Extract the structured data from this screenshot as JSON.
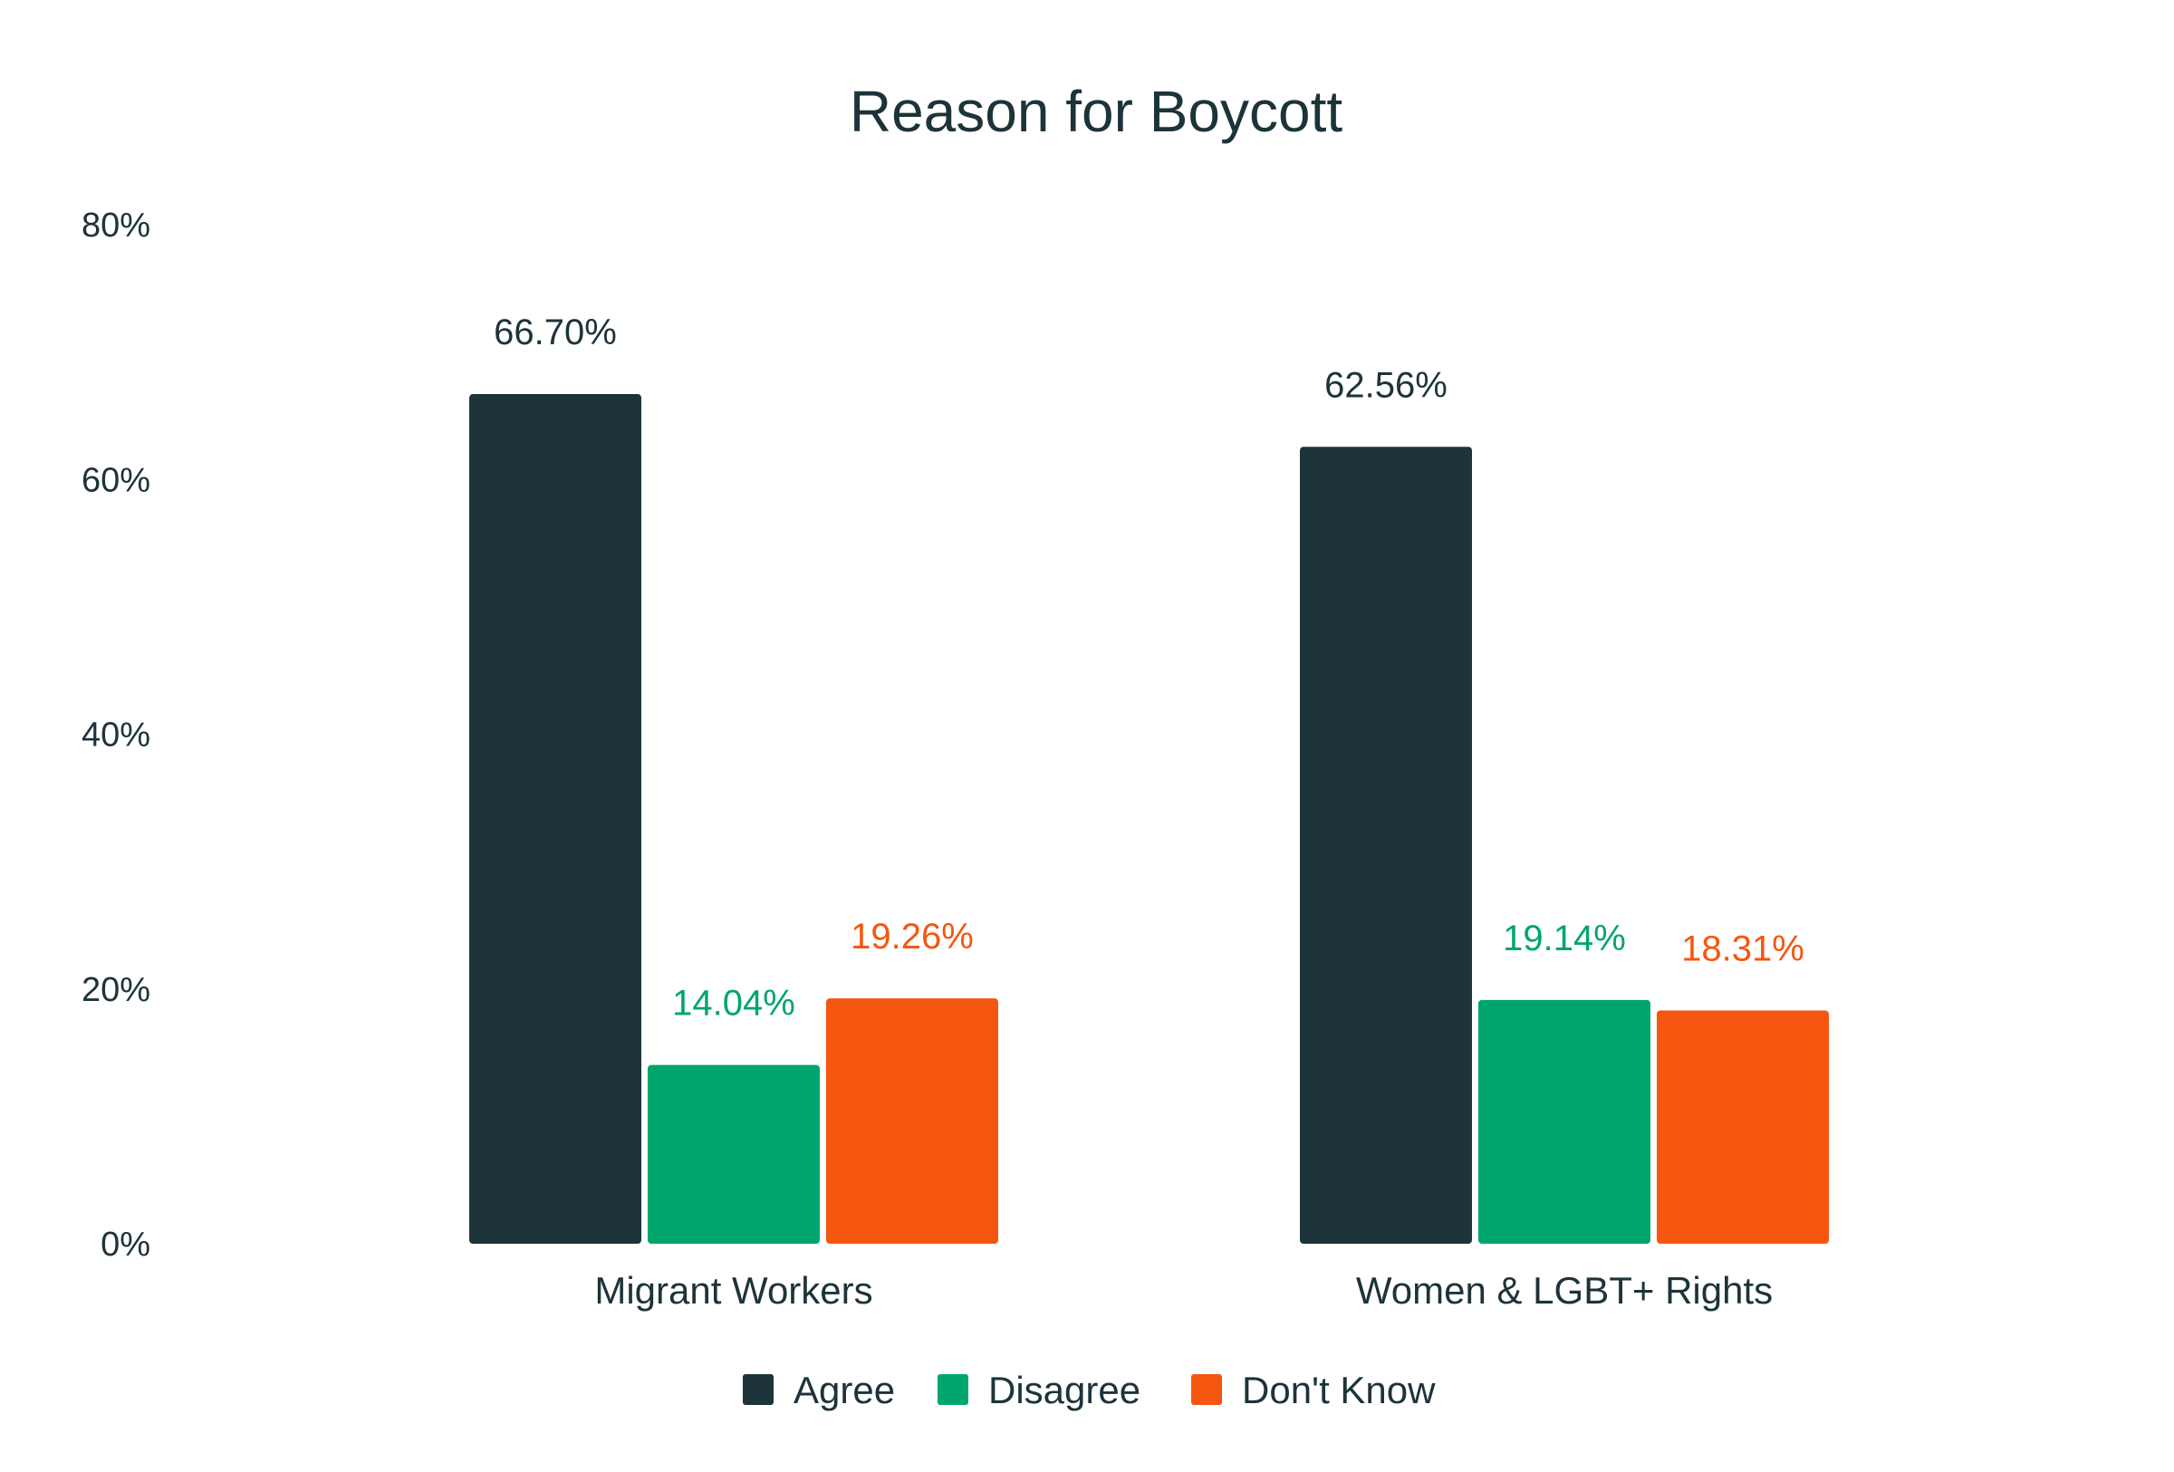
{
  "chart_data": {
    "type": "bar",
    "title": "Reason for Boycott",
    "xlabel": "",
    "ylabel": "",
    "categories": [
      "Migrant Workers",
      "Women & LGBT+ Rights"
    ],
    "series": [
      {
        "name": "Agree",
        "color": "#1e343b",
        "values": [
          66.7,
          62.56
        ],
        "labels": [
          "66.70%",
          "62.56%"
        ],
        "label_color": "#1d333a"
      },
      {
        "name": "Disagree",
        "color": "#00a56c",
        "values": [
          14.04,
          19.14
        ],
        "labels": [
          "14.04%",
          "19.14%"
        ],
        "label_color": "#00a56c"
      },
      {
        "name": "Don't Know",
        "color": "#f55610",
        "values": [
          19.26,
          18.31
        ],
        "labels": [
          "19.26%",
          "18.31%"
        ],
        "label_color": "#f55610"
      }
    ],
    "ylim": [
      0,
      80
    ],
    "yticks": [
      0,
      20,
      40,
      60,
      80
    ],
    "ytick_labels": [
      "0%",
      "20%",
      "40%",
      "60%",
      "80%"
    ],
    "grid": false,
    "legend_position": "bottom-center"
  }
}
